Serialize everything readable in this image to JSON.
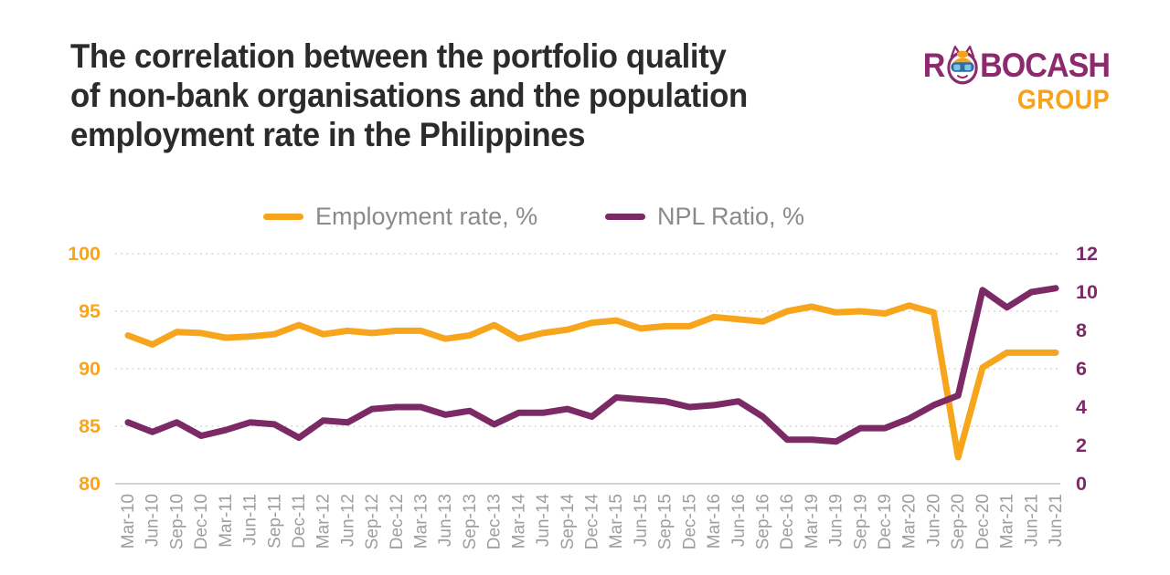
{
  "page": {
    "background": "#FFFFFF"
  },
  "header": {
    "title_lines": [
      "The correlation between the portfolio quality",
      "of non-bank organisations and the population",
      "employment rate in the Philippines"
    ],
    "logo": {
      "brand_start": "R",
      "brand_end": "BOCASH",
      "group": "GROUP",
      "brand_color": "#8C2A6D",
      "group_color": "#F7A21B"
    }
  },
  "legend": {
    "items": [
      {
        "label": "Employment rate, %",
        "color": "#F7A51D"
      },
      {
        "label": "NPL Ratio, %",
        "color": "#7C2A66"
      }
    ]
  },
  "colors": {
    "title_text": "#2B2B2B",
    "axis_label_gray": "#9E9E9E",
    "legend_text": "#8A8A8A",
    "gridline": "#D4D4D4",
    "baseline": "#C6C6C6"
  },
  "chart_data": {
    "type": "line",
    "title": "The correlation between the portfolio quality of non-bank organisations and the population employment rate in the Philippines",
    "grid": "horizontal-dotted",
    "legend_position": "top",
    "categories": [
      "Mar-10",
      "Jun-10",
      "Sep-10",
      "Dec-10",
      "Mar-11",
      "Jun-11",
      "Sep-11",
      "Dec-11",
      "Mar-12",
      "Jun-12",
      "Sep-12",
      "Dec-12",
      "Mar-13",
      "Jun-13",
      "Sep-13",
      "Dec-13",
      "Mar-14",
      "Jun-14",
      "Sep-14",
      "Dec-14",
      "Mar-15",
      "Jun-15",
      "Sep-15",
      "Dec-15",
      "Mar-16",
      "Jun-16",
      "Sep-16",
      "Dec-16",
      "Mar-19",
      "Jun-19",
      "Sep-19",
      "Dec-19",
      "Mar-20",
      "Jun-20",
      "Sep-20",
      "Dec-20",
      "Mar-21",
      "Jun-21",
      "Jun-21"
    ],
    "series": [
      {
        "id": "employment-rate",
        "name": "Employment rate, %",
        "axis": "left",
        "color": "#F7A51D",
        "values": [
          92.9,
          92.1,
          93.2,
          93.1,
          92.7,
          92.8,
          93.0,
          93.8,
          93.0,
          93.3,
          93.1,
          93.3,
          93.3,
          92.6,
          92.9,
          93.8,
          92.6,
          93.1,
          93.4,
          94.0,
          94.2,
          93.5,
          93.7,
          93.7,
          94.5,
          94.3,
          94.1,
          95.0,
          95.4,
          94.9,
          95.0,
          94.8,
          95.5,
          94.9,
          82.3,
          90.1,
          91.4,
          91.4,
          91.4
        ]
      },
      {
        "id": "npl-ratio",
        "name": "NPL Ratio, %",
        "axis": "right",
        "color": "#7C2A66",
        "values": [
          3.2,
          2.7,
          3.2,
          2.5,
          2.8,
          3.2,
          3.1,
          2.4,
          3.3,
          3.2,
          3.9,
          4.0,
          4.0,
          3.6,
          3.8,
          3.1,
          3.7,
          3.7,
          3.9,
          3.5,
          4.5,
          4.4,
          4.3,
          4.0,
          4.1,
          4.3,
          3.5,
          2.3,
          2.3,
          2.2,
          2.9,
          2.9,
          3.4,
          4.1,
          4.6,
          10.1,
          9.2,
          10.0,
          10.2
        ]
      }
    ],
    "left_axis": {
      "range": [
        80,
        100
      ],
      "ticks": [
        100,
        95,
        90,
        85,
        80
      ],
      "color": "#F7A51D"
    },
    "right_axis": {
      "range": [
        0,
        12
      ],
      "ticks": [
        12,
        10,
        8,
        6,
        4,
        2,
        0
      ],
      "color": "#7C2A66"
    }
  }
}
